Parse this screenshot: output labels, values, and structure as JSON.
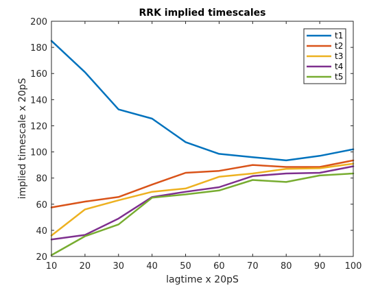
{
  "chart_data": {
    "type": "line",
    "title": "RRK implied timescales",
    "xlabel": "lagtime x 20pS",
    "ylabel": "implied timescale x 20pS",
    "xlim": [
      10,
      100
    ],
    "ylim": [
      20,
      200
    ],
    "xticks": [
      10,
      20,
      30,
      40,
      50,
      60,
      70,
      80,
      90,
      100
    ],
    "yticks": [
      20,
      40,
      60,
      80,
      100,
      120,
      140,
      160,
      180,
      200
    ],
    "grid": false,
    "legend_position": "top-right",
    "x": [
      10,
      20,
      30,
      40,
      50,
      60,
      70,
      80,
      90,
      100
    ],
    "series": [
      {
        "name": "t1",
        "color": "#0072BD",
        "values": [
          185,
          161,
          132.5,
          125.5,
          107.5,
          98.5,
          96,
          93.5,
          97,
          102
        ]
      },
      {
        "name": "t2",
        "color": "#D95319",
        "values": [
          57.5,
          62,
          65.5,
          75,
          84,
          85.5,
          90,
          88.5,
          88.5,
          93.5
        ]
      },
      {
        "name": "t3",
        "color": "#EDB120",
        "values": [
          36,
          56,
          63,
          69.5,
          72,
          81,
          83.5,
          87,
          87.5,
          91
        ]
      },
      {
        "name": "t4",
        "color": "#7E2F8E",
        "values": [
          33,
          36.5,
          49,
          65.5,
          69.5,
          73,
          81.5,
          83.5,
          84,
          89
        ]
      },
      {
        "name": "t5",
        "color": "#77AC30",
        "values": [
          21,
          35.5,
          44.5,
          65,
          67.5,
          70.5,
          78.5,
          77,
          82,
          83.5
        ]
      }
    ]
  }
}
